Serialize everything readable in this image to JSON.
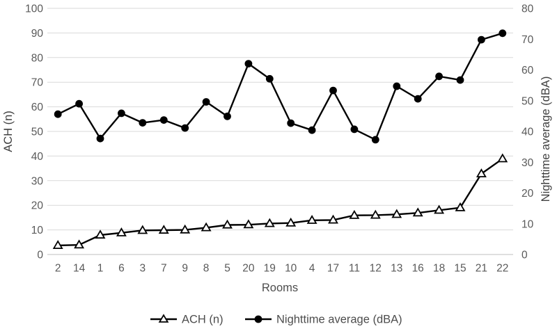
{
  "chart_data": {
    "type": "line",
    "title": "",
    "xlabel": "Rooms",
    "ylabel_left": "ACH (n)",
    "ylabel_right": "Nighttime average (dBA)",
    "categories": [
      "2",
      "14",
      "1",
      "6",
      "3",
      "7",
      "9",
      "8",
      "5",
      "20",
      "19",
      "10",
      "4",
      "17",
      "11",
      "12",
      "13",
      "16",
      "18",
      "15",
      "21",
      "22"
    ],
    "series": [
      {
        "name": "ACH (n)",
        "axis": "left",
        "marker": "triangle-open",
        "color": "#000000",
        "values": [
          3.7,
          3.9,
          7.9,
          8.8,
          9.8,
          9.9,
          10.0,
          10.9,
          12.0,
          12.1,
          12.6,
          12.8,
          13.9,
          14.0,
          15.9,
          16.0,
          16.3,
          16.9,
          18.0,
          19.0,
          32.8,
          38.9
        ]
      },
      {
        "name": "Nighttime average (dBA)",
        "axis": "right",
        "marker": "circle-filled",
        "color": "#000000",
        "values": [
          45.6,
          49.0,
          37.7,
          45.9,
          42.8,
          43.7,
          41.1,
          49.6,
          44.9,
          62.0,
          57.1,
          42.7,
          40.4,
          53.3,
          40.7,
          37.3,
          54.7,
          50.6,
          57.9,
          56.7,
          69.8,
          71.9
        ]
      }
    ],
    "axes": {
      "left": {
        "min": 0,
        "max": 100,
        "step": 10,
        "ticks": [
          0,
          10,
          20,
          30,
          40,
          50,
          60,
          70,
          80,
          90,
          100
        ]
      },
      "right": {
        "min": 0,
        "max": 80,
        "step": 10,
        "ticks": [
          0,
          10,
          20,
          30,
          40,
          50,
          60,
          70,
          80
        ]
      }
    },
    "grid": {
      "horizontal": true,
      "vertical": false
    },
    "legend_position": "bottom"
  },
  "style": {
    "background": "#ffffff",
    "series_color": "#000000",
    "grid_color": "#d9d9d9",
    "baseline_color": "#bfbfbf",
    "tick_color": "#595959",
    "axis_title_color": "#404040",
    "legend_text_color": "#4d4d4d",
    "marker_fill_open": "#ffffff"
  }
}
